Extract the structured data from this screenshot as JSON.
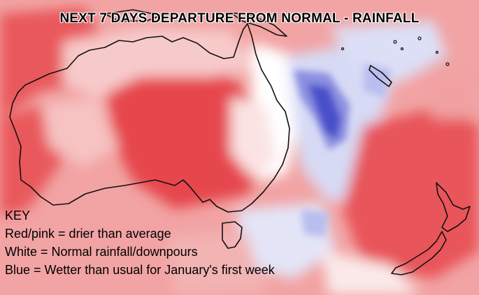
{
  "title": "NEXT 7 DAYS DEPARTURE FROM NORMAL - RAINFALL",
  "key": {
    "heading": "KEY",
    "items": [
      "Red/pink = drier than average",
      "White = Normal rainfall/downpours",
      "Blue = Wetter than usual for January's first week"
    ]
  },
  "colors": {
    "dry_strong": "#e8555a",
    "dry_light": "#f4a9a8",
    "normal": "#ffffff",
    "wet_light": "#c9cdf2",
    "wet_strong": "#4a4fc9",
    "coastline": "#111111"
  }
}
